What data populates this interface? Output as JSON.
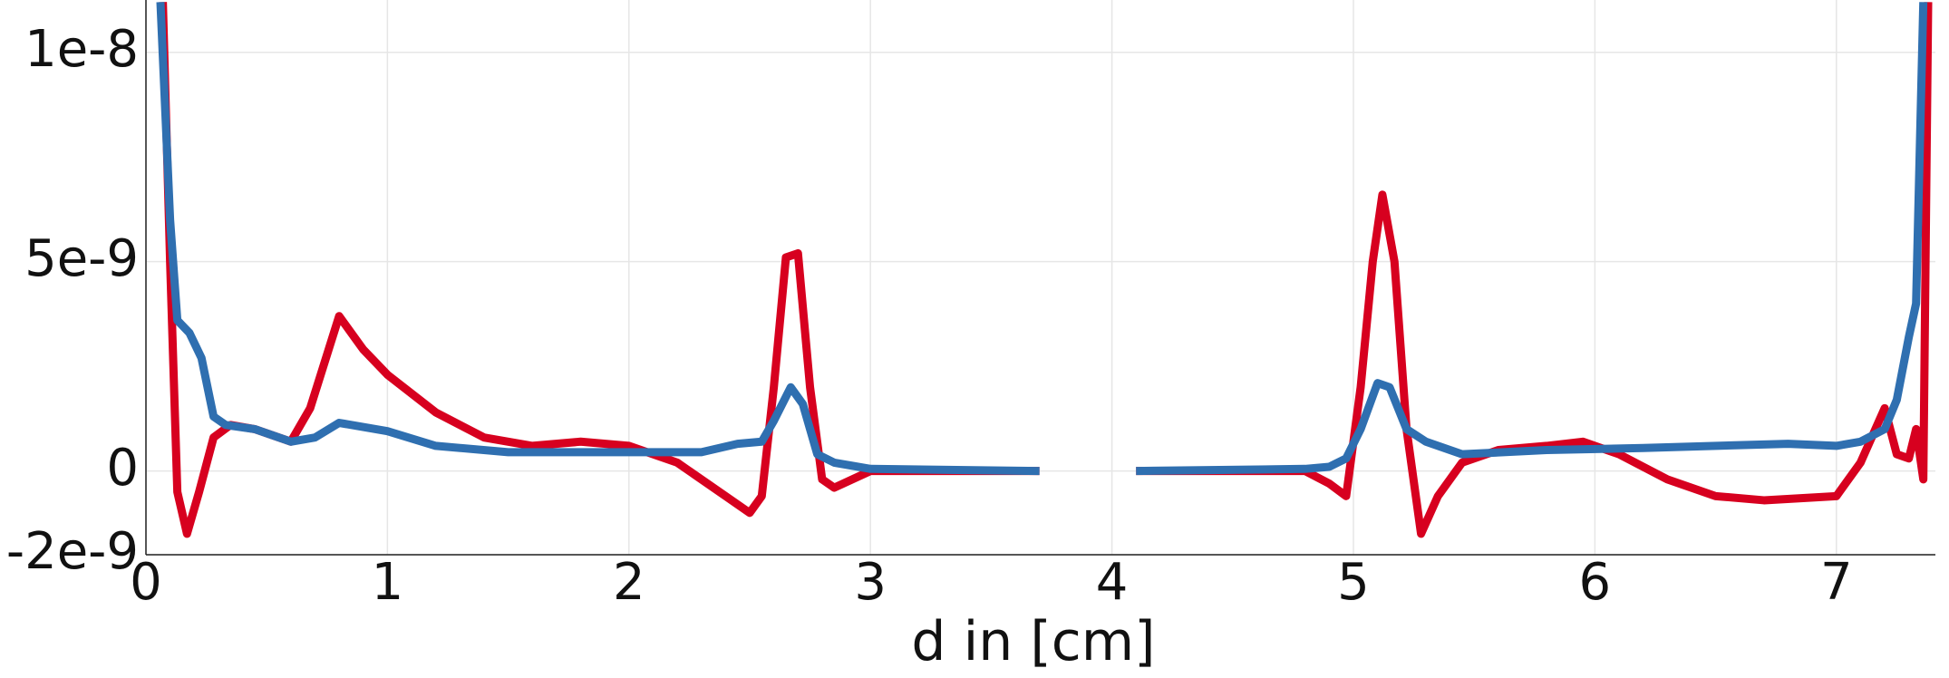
{
  "chart_data": {
    "type": "line",
    "x_label": "d in [cm]",
    "xlim": [
      0,
      7.41
    ],
    "ylim": [
      -2e-09,
      1.125e-08
    ],
    "xticks": [
      0,
      1,
      2,
      3,
      4,
      5,
      6,
      7
    ],
    "yticks": [
      {
        "value": -2e-09,
        "label": "-2e-9"
      },
      {
        "value": 0,
        "label": "0"
      },
      {
        "value": 5e-09,
        "label": "5e-9"
      },
      {
        "value": 1e-08,
        "label": "1e-8"
      }
    ],
    "grid": true,
    "series": [
      {
        "color": "#d7001f",
        "x": [
          0.07,
          0.1,
          0.13,
          0.17,
          0.22,
          0.28,
          0.35,
          0.45,
          0.6,
          0.68,
          0.8,
          0.9,
          1.0,
          1.2,
          1.4,
          1.6,
          1.8,
          2.0,
          2.2,
          2.4,
          2.5,
          2.55,
          2.6,
          2.65,
          2.7,
          2.75,
          2.8,
          2.85,
          3.0,
          3.7,
          null,
          4.1,
          4.8,
          4.9,
          4.97,
          5.03,
          5.08,
          5.12,
          5.17,
          5.22,
          5.28,
          5.35,
          5.45,
          5.6,
          5.8,
          5.95,
          6.1,
          6.3,
          6.5,
          6.7,
          7.0,
          7.1,
          7.2,
          7.25,
          7.3,
          7.33,
          7.36,
          7.38
        ],
        "values": [
          1.12e-08,
          5e-09,
          -5e-10,
          -1.5e-09,
          -5e-10,
          8e-10,
          1.1e-09,
          1e-09,
          7e-10,
          1.5e-09,
          3.7e-09,
          2.9e-09,
          2.3e-09,
          1.4e-09,
          8e-10,
          6e-10,
          7e-10,
          6e-10,
          2e-10,
          -6e-10,
          -1e-09,
          -6e-10,
          2e-09,
          5.1e-09,
          5.2e-09,
          2e-09,
          -2e-10,
          -4e-10,
          0,
          0,
          null,
          0,
          0,
          -3e-10,
          -6e-10,
          2e-09,
          5e-09,
          6.6e-09,
          5e-09,
          1e-09,
          -1.5e-09,
          -6e-10,
          2e-10,
          5e-10,
          6e-10,
          7e-10,
          4e-10,
          -2e-10,
          -6e-10,
          -7e-10,
          -6e-10,
          2e-10,
          1.5e-09,
          4e-10,
          3e-10,
          1e-09,
          -2e-10,
          1.12e-08
        ]
      },
      {
        "color": "#2f6fb0",
        "x": [
          0.06,
          0.1,
          0.13,
          0.18,
          0.23,
          0.28,
          0.33,
          0.45,
          0.6,
          0.7,
          0.8,
          1.0,
          1.2,
          1.5,
          2.0,
          2.3,
          2.45,
          2.55,
          2.6,
          2.67,
          2.72,
          2.78,
          2.85,
          3.0,
          3.7,
          null,
          4.1,
          4.8,
          4.9,
          4.97,
          5.03,
          5.1,
          5.15,
          5.22,
          5.3,
          5.45,
          5.8,
          6.2,
          6.8,
          7.0,
          7.1,
          7.2,
          7.25,
          7.3,
          7.33,
          7.36
        ],
        "values": [
          1.12e-08,
          6e-09,
          3.6e-09,
          3.3e-09,
          2.7e-09,
          1.3e-09,
          1.1e-09,
          1e-09,
          7e-10,
          8e-10,
          1.15e-09,
          9.5e-10,
          6e-10,
          4.5e-10,
          4.5e-10,
          4.5e-10,
          6.5e-10,
          7e-10,
          1.2e-09,
          2e-09,
          1.6e-09,
          4e-10,
          2e-10,
          5e-11,
          0,
          null,
          0,
          5e-11,
          1e-10,
          3e-10,
          1e-09,
          2.1e-09,
          2e-09,
          1e-09,
          7e-10,
          4e-10,
          5e-10,
          5.5e-10,
          6.5e-10,
          6e-10,
          7e-10,
          1e-09,
          1.7e-09,
          3.2e-09,
          4e-09,
          1.12e-08
        ]
      }
    ]
  }
}
